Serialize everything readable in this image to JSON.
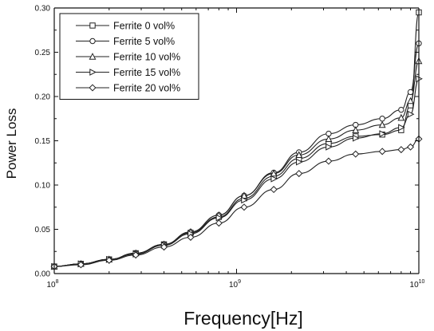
{
  "chart_data": {
    "type": "line",
    "title": "",
    "xlabel": "Frequency[Hz]",
    "ylabel": "Power Loss",
    "x_scale": "log",
    "xlim": [
      100000000,
      10000000000
    ],
    "ylim": [
      0,
      0.3
    ],
    "x_ticks": [
      {
        "value": 100000000,
        "label_base": "10",
        "label_exp": "8"
      },
      {
        "value": 1000000000,
        "label_base": "10",
        "label_exp": "9"
      },
      {
        "value": 10000000000,
        "label_base": "10",
        "label_exp": "10"
      }
    ],
    "y_ticks": [
      {
        "value": 0.0,
        "label": "0.00"
      },
      {
        "value": 0.05,
        "label": "0.05"
      },
      {
        "value": 0.1,
        "label": "0.10"
      },
      {
        "value": 0.15,
        "label": "0.15"
      },
      {
        "value": 0.2,
        "label": "0.20"
      },
      {
        "value": 0.25,
        "label": "0.25"
      },
      {
        "value": 0.3,
        "label": "0.30"
      }
    ],
    "grid": false,
    "legend_position": "top-left",
    "x": [
      100000000,
      140000000,
      200000000,
      280000000,
      400000000,
      560000000,
      800000000,
      1100000000,
      1600000000,
      2200000000,
      3200000000,
      4500000000,
      6300000000,
      8000000000,
      9000000000,
      10000000000
    ],
    "series": [
      {
        "name": "Ferrite 0 vol%",
        "marker": "square",
        "values": [
          0.008,
          0.011,
          0.016,
          0.023,
          0.033,
          0.046,
          0.064,
          0.085,
          0.11,
          0.13,
          0.147,
          0.155,
          0.157,
          0.162,
          0.19,
          0.295
        ]
      },
      {
        "name": "Ferrite 5 vol%",
        "marker": "circle",
        "values": [
          0.008,
          0.011,
          0.016,
          0.023,
          0.033,
          0.047,
          0.066,
          0.088,
          0.114,
          0.137,
          0.158,
          0.168,
          0.175,
          0.185,
          0.205,
          0.26
        ]
      },
      {
        "name": "Ferrite 10 vol%",
        "marker": "triangle-up",
        "values": [
          0.008,
          0.011,
          0.016,
          0.023,
          0.033,
          0.047,
          0.066,
          0.088,
          0.113,
          0.134,
          0.152,
          0.162,
          0.168,
          0.176,
          0.195,
          0.24
        ]
      },
      {
        "name": "Ferrite 15 vol%",
        "marker": "triangle-right",
        "values": [
          0.008,
          0.011,
          0.016,
          0.022,
          0.032,
          0.045,
          0.063,
          0.083,
          0.107,
          0.126,
          0.143,
          0.153,
          0.158,
          0.165,
          0.18,
          0.22
        ]
      },
      {
        "name": "Ferrite 20 vol%",
        "marker": "diamond",
        "values": [
          0.008,
          0.01,
          0.015,
          0.021,
          0.03,
          0.041,
          0.057,
          0.075,
          0.095,
          0.113,
          0.127,
          0.135,
          0.138,
          0.14,
          0.143,
          0.152
        ]
      }
    ]
  }
}
